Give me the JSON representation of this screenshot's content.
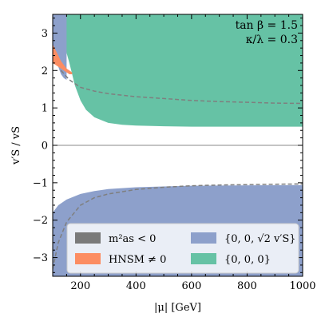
{
  "chart_data": {
    "type": "area",
    "title": "",
    "xlabel": "|μ| [GeV]",
    "ylabel": "v′S / vS",
    "xlim": [
      100,
      1000
    ],
    "ylim": [
      -3.5,
      3.5
    ],
    "xticks": [
      200,
      400,
      600,
      800,
      1000
    ],
    "xtick_labels": [
      "200",
      "400",
      "600",
      "800",
      "1000"
    ],
    "yticks": [
      -3,
      -2,
      -1,
      0,
      1,
      2,
      3
    ],
    "ytick_labels": [
      "−3",
      "−2",
      "−1",
      "0",
      "1",
      "2",
      "3"
    ],
    "grid": false,
    "annotations": [
      "tan β = 1.5",
      "κ/λ = 0.3"
    ],
    "legend": {
      "placement": "lower-center",
      "entries": [
        {
          "label": "m²as < 0",
          "color": "#7a7a7a"
        },
        {
          "label": "HNSM ≠ 0",
          "color": "#fc8d62"
        },
        {
          "label": "{0, 0, √2 v′S}",
          "color": "#8da0cb"
        },
        {
          "label": "{0, 0, 0}",
          "color": "#66c2a5"
        }
      ]
    },
    "series": [
      {
        "name": "{0, 0, 0}",
        "color": "#66c2a5",
        "x": [
          100,
          130,
          160,
          180,
          200,
          220,
          250,
          300,
          350,
          400,
          500,
          600,
          700,
          800,
          900,
          1000
        ],
        "lower": [
          3.5,
          3.0,
          2.2,
          1.6,
          1.2,
          0.95,
          0.75,
          0.6,
          0.55,
          0.53,
          0.51,
          0.5,
          0.5,
          0.5,
          0.5,
          0.5
        ],
        "upper": [
          3.5,
          3.5,
          3.5,
          3.5,
          3.5,
          3.5,
          3.5,
          3.5,
          3.5,
          3.5,
          3.5,
          3.5,
          3.5,
          3.5,
          3.5,
          3.5
        ]
      },
      {
        "name": "{0, 0, √2 v′S}",
        "color": "#8da0cb",
        "x": [
          100,
          120,
          150,
          200,
          250,
          300,
          400,
          500,
          600,
          800,
          1000
        ],
        "lower": [
          -3.5,
          -3.5,
          -3.5,
          -3.5,
          -3.5,
          -3.5,
          -3.5,
          -3.5,
          -3.5,
          -3.5,
          -3.5
        ],
        "upper": [
          -1.8,
          -1.6,
          -1.45,
          -1.3,
          -1.22,
          -1.17,
          -1.12,
          -1.1,
          -1.08,
          -1.07,
          -1.06
        ]
      },
      {
        "name": "{0, 0, √2 v′S} (upper region)",
        "color": "#8da0cb",
        "x": [
          100,
          110,
          120,
          130,
          140,
          150
        ],
        "lower": [
          2.6,
          2.3,
          2.1,
          1.9,
          1.8,
          1.75
        ],
        "upper": [
          3.5,
          3.5,
          3.5,
          3.5,
          3.5,
          3.5
        ]
      },
      {
        "name": "HNSM ≠ 0",
        "color": "#fc8d62",
        "x": [
          100,
          110,
          120,
          130,
          140,
          150,
          160,
          170
        ],
        "lower": [
          2.2,
          2.15,
          2.1,
          2.05,
          2.0,
          1.95,
          1.9,
          1.9
        ],
        "upper": [
          2.7,
          2.55,
          2.4,
          2.25,
          2.15,
          2.05,
          2.0,
          1.95
        ]
      },
      {
        "name": "dashed reference (positive)",
        "style": "dashed",
        "x": [
          130,
          160,
          200,
          250,
          300,
          400,
          500,
          600,
          700,
          800,
          900,
          1000
        ],
        "values": [
          2.0,
          1.75,
          1.55,
          1.45,
          1.38,
          1.3,
          1.25,
          1.2,
          1.17,
          1.15,
          1.13,
          1.12
        ]
      },
      {
        "name": "dashed reference (negative)",
        "style": "dashed",
        "x": [
          100,
          120,
          150,
          200,
          250,
          300,
          400,
          500,
          600,
          700,
          800,
          900,
          1000
        ],
        "values": [
          -3.3,
          -2.6,
          -2.05,
          -1.6,
          -1.4,
          -1.3,
          -1.18,
          -1.12,
          -1.08,
          -1.06,
          -1.05,
          -1.04,
          -1.03
        ]
      }
    ],
    "zero_line": 0
  }
}
